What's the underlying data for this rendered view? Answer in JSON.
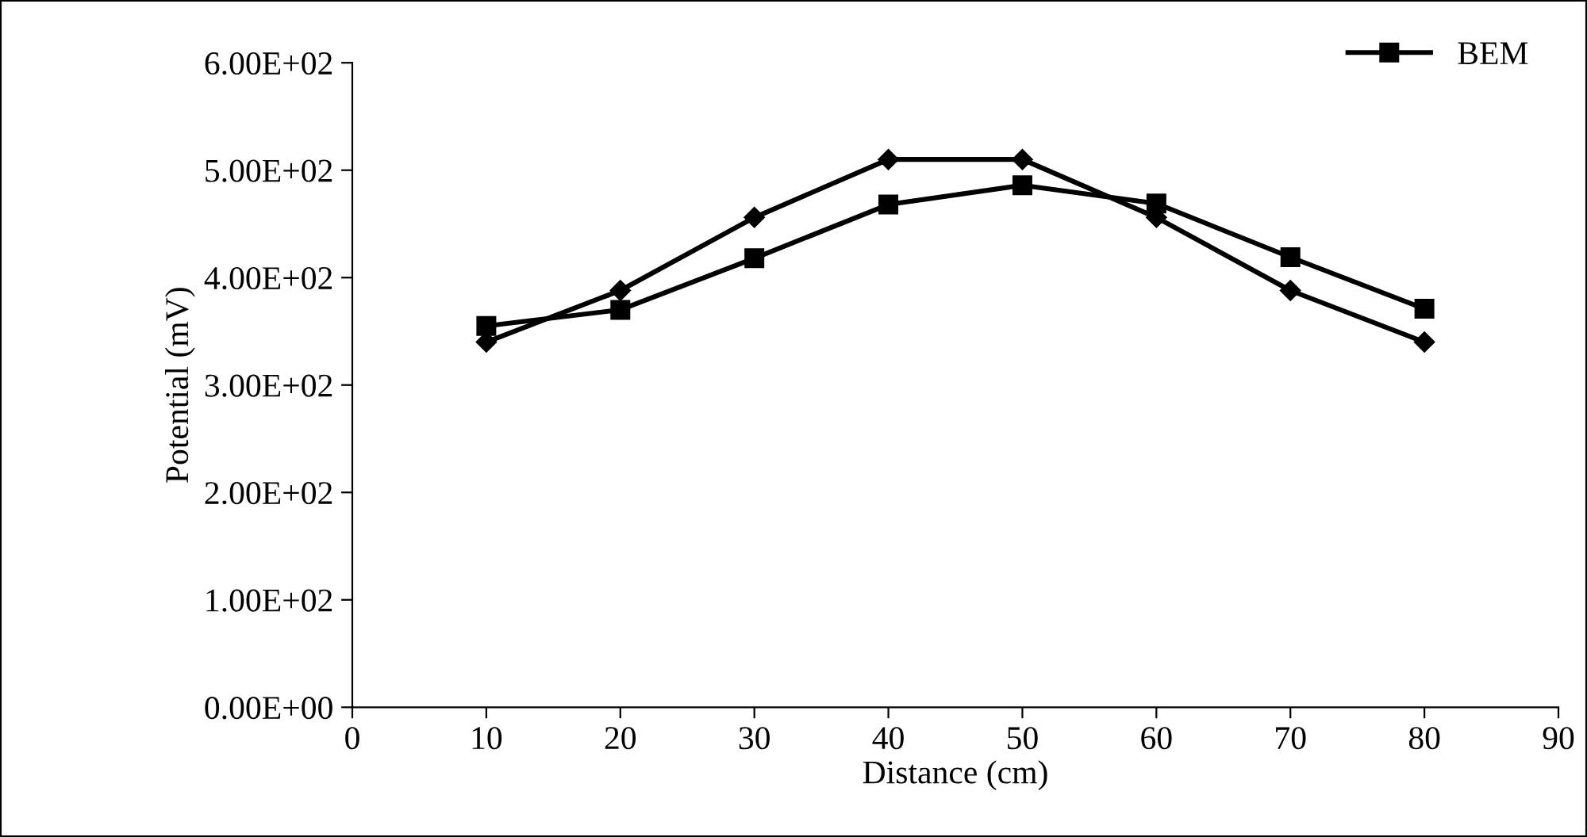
{
  "chart_data": {
    "type": "line",
    "xlabel": "Distance (cm)",
    "ylabel": "Potential (mV)",
    "x": [
      10,
      20,
      30,
      40,
      50,
      60,
      70,
      80
    ],
    "series": [
      {
        "color": "#000000",
        "marker": "diamond",
        "values": [
          340,
          388,
          456,
          510,
          510,
          456,
          388,
          340
        ]
      },
      {
        "name": "BEM",
        "color": "#000000",
        "marker": "square",
        "values": [
          355,
          370,
          418,
          468,
          486,
          469,
          419,
          371
        ]
      }
    ],
    "xlim": [
      0,
      90
    ],
    "xticks": [
      0,
      10,
      20,
      30,
      40,
      50,
      60,
      70,
      80,
      90
    ],
    "ylim": [
      0,
      600
    ],
    "yticks": [
      {
        "value": 0,
        "label": "0.00E+00"
      },
      {
        "value": 100,
        "label": "1.00E+02"
      },
      {
        "value": 200,
        "label": "2.00E+02"
      },
      {
        "value": 300,
        "label": "3.00E+02"
      },
      {
        "value": 400,
        "label": "4.00E+02"
      },
      {
        "value": 500,
        "label": "5.00E+02"
      },
      {
        "value": 600,
        "label": "6.00E+02"
      }
    ],
    "grid": false,
    "legend": "top right",
    "line_style": "solid"
  }
}
